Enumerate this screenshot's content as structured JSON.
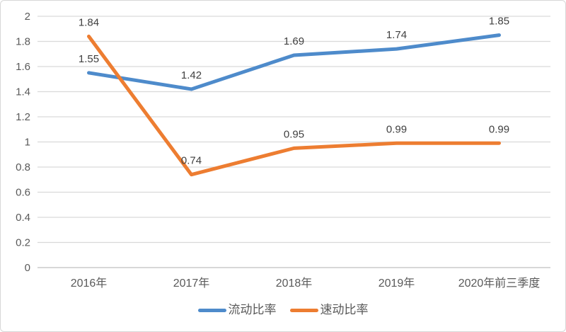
{
  "chart_data": {
    "type": "line",
    "title": "",
    "xlabel": "",
    "ylabel": "",
    "categories": [
      "2016年",
      "2017年",
      "2018年",
      "2019年",
      "2020年前三季度"
    ],
    "series": [
      {
        "name": "流动比率",
        "values": [
          1.55,
          1.42,
          1.69,
          1.74,
          1.85
        ],
        "labels": [
          "1.55",
          "1.42",
          "1.69",
          "1.74",
          "1.85"
        ],
        "color": "#4E8BCB"
      },
      {
        "name": "速动比率",
        "values": [
          1.84,
          0.74,
          0.95,
          0.99,
          0.99
        ],
        "labels": [
          "1.84",
          "0.74",
          "0.95",
          "0.99",
          "0.99"
        ],
        "color": "#ED7D31"
      }
    ],
    "ylim": [
      0,
      2
    ],
    "ytick_step": 0.2,
    "ytick_labels": [
      "0",
      "0.2",
      "0.4",
      "0.6",
      "0.8",
      "1",
      "1.2",
      "1.4",
      "1.6",
      "1.8",
      "2"
    ],
    "grid": true,
    "legend_position": "bottom"
  },
  "colors": {
    "background": "#FFFFFF",
    "frame_border": "#D7D7D7",
    "gridline": "#D9D9D9",
    "axis_line": "#BFBFBF",
    "tick_text": "#595959",
    "data_label_text": "#404040"
  }
}
